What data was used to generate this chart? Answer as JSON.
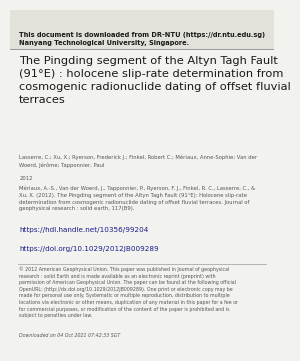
{
  "header_bold": "This document is downloaded from DR-NTU (https://dr.ntu.edu.sg)\nNanyang Technological University, Singapore.",
  "title": "The Pingding segment of the Altyn Tagh Fault\n(91°E) : holocene slip-rate determination from\ncosmogenic radionuclide dating of offset fluvial\nterraces",
  "authors": "Lasserre, C.; Xu, X.; Ryerson, Frederick J.; Finkel, Robert C.; Mériaux, Anne-Sophie; Van der\nWoerd, Jérôme; Tapponnier, Paul",
  "year": "2012",
  "citation": "Mériaux, A.-S., Van der Woerd, J., Tapponnier, P., Ryerson, F. J., Finkel, R. C., Lasserre, C., &\nXu, X. (2012). The Pingding segment of the Altyn Tagh Fault (91°E): Holocene slip-rate\ndetermination from cosmogenic radionuclide dating of offset fluvial terraces. Journal of\ngeophysical research : solid earth, 117(B9).",
  "handle_url": "https://hdl.handle.net/10356/99204",
  "doi_url": "https://doi.org/10.1029/2012JB009289",
  "footer": "© 2012 American Geophysical Union. This paper was published in Journal of geophysical\nresearch : solid Earth and is made available as an electronic reprint (preprint) with\npermission of American Geophysical Union. The paper can be found at the following official\nOpenURL: (http://dx.doi.org/10.1029/2012JB009289). One print or electronic copy may be\nmade for personal use only. Systematic or multiple reproduction, distribution to multiple\nlocations via electronic or other means, duplication of any material in this paper for a fee or\nfor commercial purposes, or modification of the content of the paper is prohibited and is\nsubject to penalties under law.",
  "downloaded": "Downloaded on 04 Oct 2021 07:42:33 SGT",
  "bg_color": "#f2f2ee",
  "header_bg": "#e2e2da",
  "header_fontsize": 4.8,
  "title_fontsize": 8.2,
  "authors_fontsize": 3.8,
  "year_fontsize": 3.8,
  "citation_fontsize": 3.8,
  "url_fontsize": 5.2,
  "footer_fontsize": 3.4,
  "downloaded_fontsize": 3.4,
  "text_color": "#1a1a1a",
  "url_color": "#1a1a8c",
  "footer_color": "#555555",
  "downloaded_color": "#555555",
  "separator_color": "#aaaaaa",
  "header_line_color": "#999999"
}
